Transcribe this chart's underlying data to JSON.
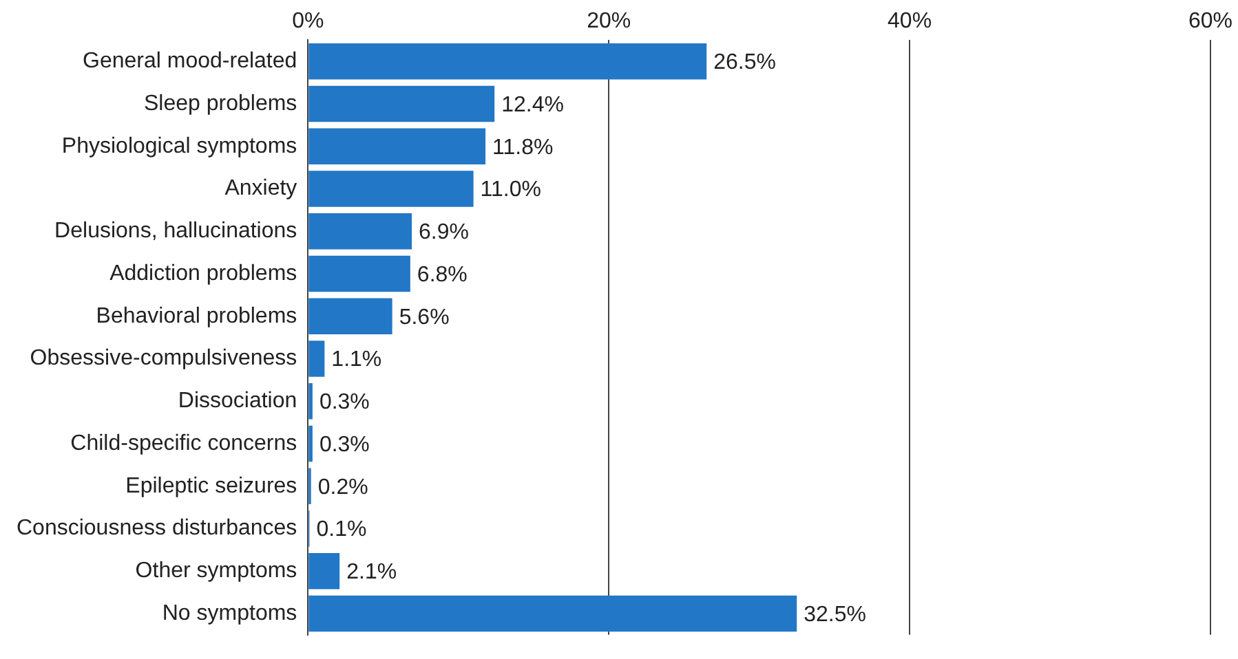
{
  "chart_data": {
    "type": "bar",
    "orientation": "horizontal",
    "categories": [
      "General mood-related",
      "Sleep problems",
      "Physiological symptoms",
      "Anxiety",
      "Delusions, hallucinations",
      "Addiction problems",
      "Behavioral problems",
      "Obsessive-compulsiveness",
      "Dissociation",
      "Child-specific concerns",
      "Epileptic seizures",
      "Consciousness disturbances",
      "Other symptoms",
      "No symptoms"
    ],
    "values": [
      26.5,
      12.4,
      11.8,
      11.0,
      6.9,
      6.8,
      5.6,
      1.1,
      0.3,
      0.3,
      0.2,
      0.1,
      2.1,
      32.5
    ],
    "value_labels": [
      "26.5%",
      "12.4%",
      "11.8%",
      "11.0%",
      "6.9%",
      "6.8%",
      "5.6%",
      "1.1%",
      "0.3%",
      "0.3%",
      "0.2%",
      "0.1%",
      "2.1%",
      "32.5%"
    ],
    "color": "#2277c6",
    "xlim": [
      0,
      60
    ],
    "xticks": [
      {
        "value": 0,
        "label": "0%"
      },
      {
        "value": 20,
        "label": "20%"
      },
      {
        "value": 40,
        "label": "40%"
      },
      {
        "value": 60,
        "label": "60%"
      }
    ],
    "grid": "x",
    "legend": false
  }
}
